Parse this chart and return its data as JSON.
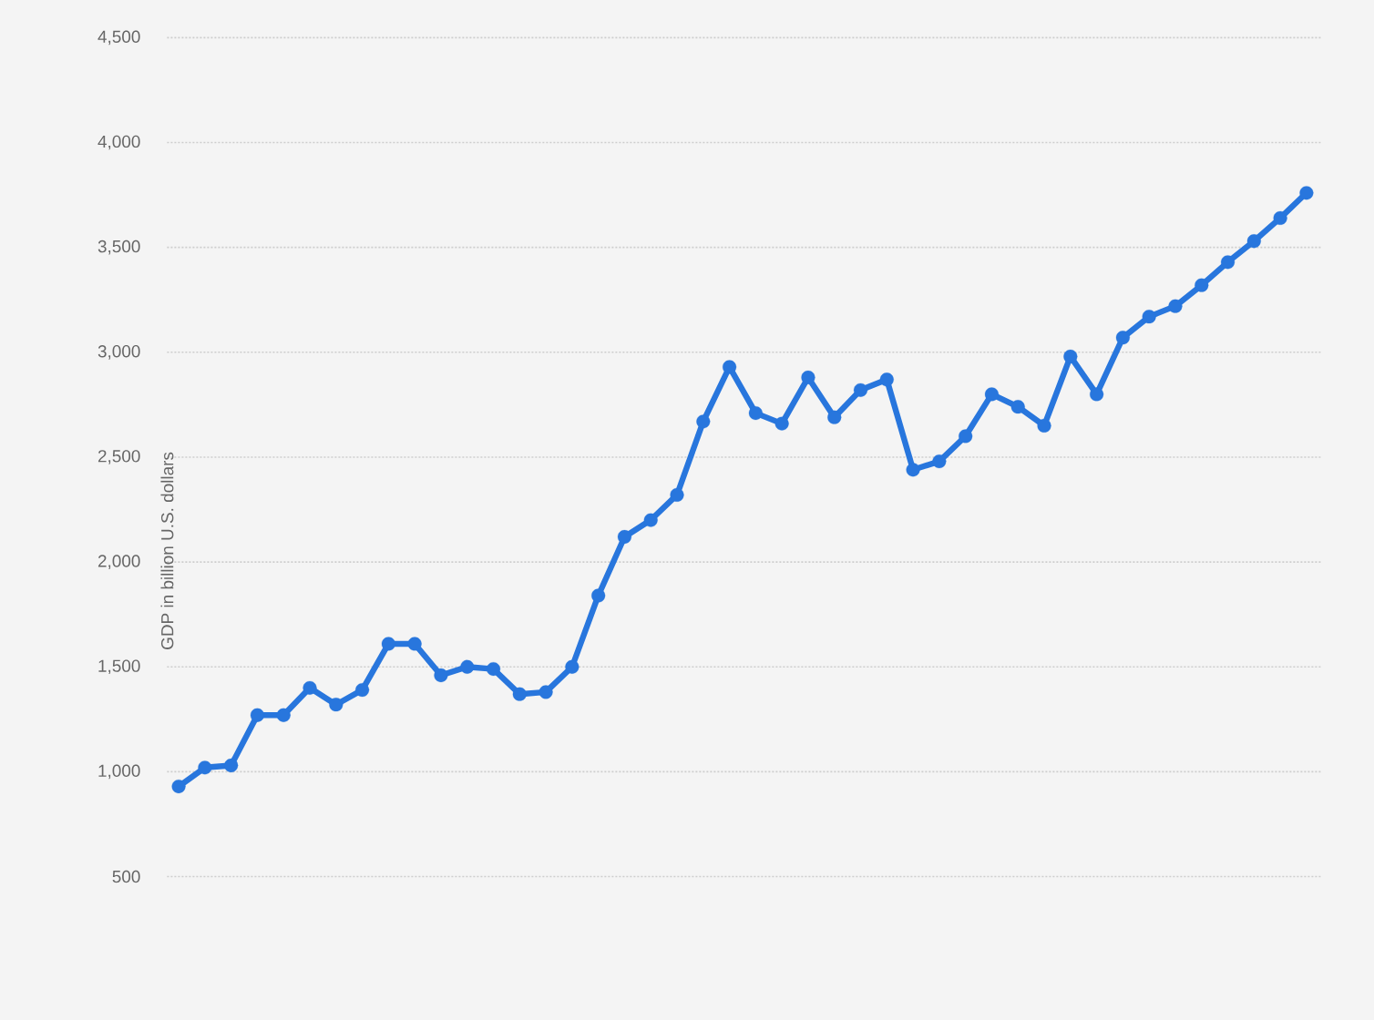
{
  "chart_data": {
    "type": "line",
    "ylabel": "GDP in billion U.S. dollars",
    "categories": [
      null,
      null,
      null,
      null,
      null,
      null,
      null,
      null,
      null,
      null,
      null,
      null,
      null,
      null,
      null,
      null,
      null,
      null,
      null,
      null,
      null,
      null,
      null,
      null,
      null,
      null,
      null,
      null,
      null,
      null,
      null,
      null,
      null,
      null,
      null,
      null,
      null,
      null,
      null,
      null,
      null,
      null,
      null,
      null
    ],
    "series": [
      {
        "color": "#2876dd",
        "values": [
          930,
          1020,
          1030,
          1270,
          1270,
          1400,
          1320,
          1390,
          1610,
          1610,
          1460,
          1500,
          1490,
          1370,
          1380,
          1500,
          1840,
          2120,
          2200,
          2320,
          2670,
          2930,
          2710,
          2660,
          2880,
          2690,
          2820,
          2870,
          2440,
          2480,
          2600,
          2800,
          2740,
          2650,
          2980,
          2800,
          3070,
          3170,
          3220,
          3320,
          3430,
          3530,
          3640,
          3760
        ]
      }
    ],
    "ylim": [
      500,
      4500
    ],
    "yticks": [
      500,
      {
        "value": 1000,
        "label": "1,000"
      },
      {
        "value": 1500,
        "label": "1,500"
      },
      {
        "value": 2000,
        "label": "2,000"
      },
      {
        "value": 2500,
        "label": "2,500"
      },
      {
        "value": 3000,
        "label": "3,000"
      },
      {
        "value": 3500,
        "label": "3,500"
      },
      {
        "value": 4000,
        "label": "4,000"
      },
      {
        "value": 4500,
        "label": "4,500"
      }
    ],
    "grid": "y",
    "marker": "circle",
    "line_style": "solid",
    "tick_labels": "y"
  }
}
